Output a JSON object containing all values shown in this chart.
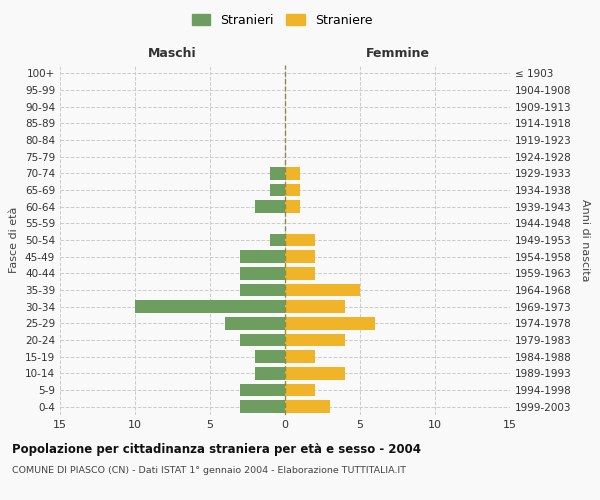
{
  "age_groups": [
    "0-4",
    "5-9",
    "10-14",
    "15-19",
    "20-24",
    "25-29",
    "30-34",
    "35-39",
    "40-44",
    "45-49",
    "50-54",
    "55-59",
    "60-64",
    "65-69",
    "70-74",
    "75-79",
    "80-84",
    "85-89",
    "90-94",
    "95-99",
    "100+"
  ],
  "birth_years": [
    "1999-2003",
    "1994-1998",
    "1989-1993",
    "1984-1988",
    "1979-1983",
    "1974-1978",
    "1969-1973",
    "1964-1968",
    "1959-1963",
    "1954-1958",
    "1949-1953",
    "1944-1948",
    "1939-1943",
    "1934-1938",
    "1929-1933",
    "1924-1928",
    "1919-1923",
    "1914-1918",
    "1909-1913",
    "1904-1908",
    "≤ 1903"
  ],
  "males": [
    3,
    3,
    2,
    2,
    3,
    4,
    10,
    3,
    3,
    3,
    1,
    0,
    2,
    1,
    1,
    0,
    0,
    0,
    0,
    0,
    0
  ],
  "females": [
    3,
    2,
    4,
    2,
    4,
    6,
    4,
    5,
    2,
    2,
    2,
    0,
    1,
    1,
    1,
    0,
    0,
    0,
    0,
    0,
    0
  ],
  "male_color": "#6e9e5f",
  "female_color": "#f0b429",
  "center_line_color": "#8a8a4a",
  "grid_color": "#cccccc",
  "background_color": "#f9f9f9",
  "title": "Popolazione per cittadinanza straniera per età e sesso - 2004",
  "subtitle": "COMUNE DI PIASCO (CN) - Dati ISTAT 1° gennaio 2004 - Elaborazione TUTTITALIA.IT",
  "xlabel_left": "Maschi",
  "xlabel_right": "Femmine",
  "ylabel_left": "Fasce di età",
  "ylabel_right": "Anni di nascita",
  "legend_male": "Stranieri",
  "legend_female": "Straniere",
  "xlim": 15
}
